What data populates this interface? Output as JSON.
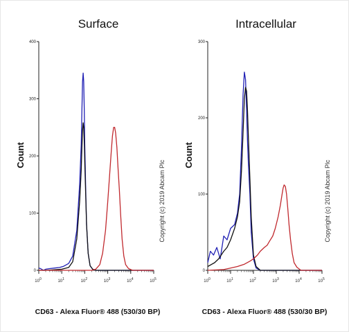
{
  "chart_data": [
    {
      "type": "line",
      "title": "Surface",
      "xlabel": "CD63 - Alexa Fluor® 488 (530/30 BP)",
      "ylabel": "Count",
      "x_scale": "log",
      "xlim": [
        1,
        100000
      ],
      "ylim": [
        0,
        400
      ],
      "yticks": [
        "0",
        "100",
        "200",
        "300",
        "400"
      ],
      "xticks": [
        1,
        10,
        100,
        1000,
        10000,
        100000
      ],
      "xtick_base": "10",
      "xtick_exponents": [
        "0",
        "1",
        "2",
        "3",
        "4",
        "5"
      ],
      "series": [
        {
          "color": "#1f1fb4",
          "x": [
            1,
            1.2,
            1.6,
            2,
            3,
            5,
            8,
            12,
            20,
            30,
            45,
            60,
            70,
            75,
            80,
            85,
            90,
            95,
            100,
            110,
            120,
            140,
            170,
            220,
            300,
            1000,
            100000
          ],
          "y": [
            4,
            3,
            0,
            2,
            3,
            4,
            5,
            7,
            12,
            25,
            70,
            150,
            220,
            280,
            330,
            345,
            330,
            280,
            220,
            140,
            80,
            30,
            8,
            2,
            0,
            0,
            0
          ]
        },
        {
          "color": "#111111",
          "x": [
            1,
            2,
            5,
            10,
            20,
            30,
            45,
            60,
            70,
            75,
            80,
            85,
            90,
            95,
            100,
            110,
            120,
            140,
            170,
            220,
            300,
            1000,
            100000
          ],
          "y": [
            0,
            0,
            1,
            2,
            5,
            15,
            55,
            120,
            175,
            215,
            245,
            258,
            250,
            225,
            190,
            130,
            80,
            30,
            8,
            2,
            0,
            0,
            0
          ]
        },
        {
          "color": "#c0282d",
          "x": [
            1,
            200,
            300,
            450,
            600,
            800,
            1000,
            1200,
            1400,
            1600,
            1800,
            2000,
            2200,
            2500,
            2800,
            3200,
            3600,
            4200,
            5000,
            6000,
            8000,
            12000,
            100000
          ],
          "y": [
            0,
            0,
            2,
            10,
            30,
            70,
            120,
            165,
            205,
            235,
            250,
            250,
            240,
            215,
            180,
            140,
            100,
            55,
            25,
            10,
            3,
            0,
            0
          ]
        }
      ]
    },
    {
      "type": "line",
      "title": "Intracellular",
      "xlabel": "CD63 - Alexa Fluor® 488 (530/30 BP)",
      "ylabel": "Count",
      "x_scale": "log",
      "xlim": [
        1,
        100000
      ],
      "ylim": [
        0,
        300
      ],
      "yticks": [
        "0",
        "100",
        "200",
        "300"
      ],
      "xticks": [
        1,
        10,
        100,
        1000,
        10000,
        100000
      ],
      "xtick_base": "10",
      "xtick_exponents": [
        "0",
        "1",
        "2",
        "3",
        "4",
        "5"
      ],
      "series": [
        {
          "color": "#1f1fb4",
          "x": [
            1,
            1.3,
            1.8,
            2.5,
            3.5,
            5,
            7,
            10,
            15,
            20,
            25,
            30,
            35,
            40,
            45,
            50,
            55,
            60,
            70,
            80,
            100,
            130,
            200,
            100000
          ],
          "y": [
            10,
            25,
            20,
            30,
            15,
            45,
            40,
            55,
            60,
            75,
            100,
            160,
            230,
            260,
            250,
            210,
            170,
            140,
            100,
            50,
            15,
            3,
            0,
            0
          ]
        },
        {
          "color": "#111111",
          "x": [
            1,
            2,
            3,
            5,
            7,
            10,
            15,
            20,
            25,
            30,
            35,
            40,
            45,
            50,
            55,
            60,
            70,
            80,
            100,
            130,
            200,
            100000
          ],
          "y": [
            5,
            10,
            15,
            25,
            30,
            40,
            55,
            70,
            90,
            130,
            180,
            225,
            240,
            235,
            210,
            175,
            120,
            70,
            20,
            5,
            0,
            0
          ]
        },
        {
          "color": "#c0282d",
          "x": [
            1,
            5,
            10,
            20,
            40,
            70,
            100,
            150,
            200,
            300,
            400,
            500,
            700,
            900,
            1200,
            1500,
            1800,
            2000,
            2200,
            2500,
            2800,
            3200,
            3600,
            4200,
            5000,
            6000,
            8000,
            12000,
            100000
          ],
          "y": [
            0,
            1,
            3,
            5,
            8,
            12,
            15,
            20,
            25,
            30,
            33,
            38,
            45,
            55,
            70,
            85,
            100,
            108,
            112,
            110,
            100,
            80,
            60,
            40,
            22,
            10,
            4,
            0,
            0
          ]
        }
      ]
    }
  ],
  "copyright": "Copyright (c) 2019 Abcam Plc"
}
